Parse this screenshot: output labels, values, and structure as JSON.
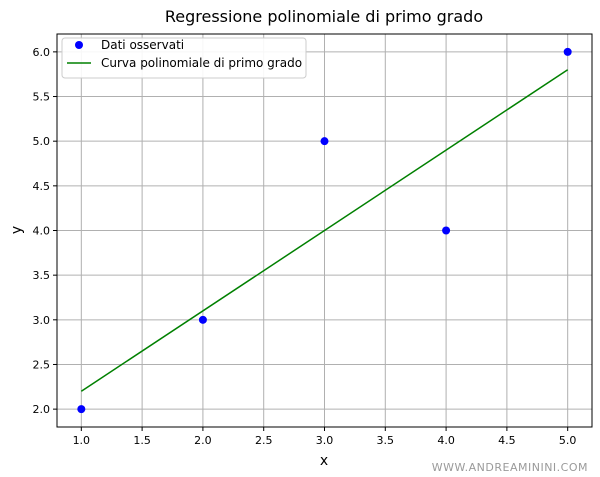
{
  "chart_data": {
    "type": "scatter",
    "title": "Regressione polinomiale di primo grado",
    "xlabel": "x",
    "ylabel": "y",
    "xlim": [
      0.8,
      5.2
    ],
    "ylim": [
      1.8,
      6.2
    ],
    "xticks": [
      "1.0",
      "1.5",
      "2.0",
      "2.5",
      "3.0",
      "3.5",
      "4.0",
      "4.5",
      "5.0"
    ],
    "yticks": [
      "2.0",
      "2.5",
      "3.0",
      "3.5",
      "4.0",
      "4.5",
      "5.0",
      "5.5",
      "6.0"
    ],
    "grid": true,
    "legend_position": "top-left",
    "series": [
      {
        "name": "Dati osservati",
        "kind": "scatter",
        "color": "#0000ff",
        "x": [
          1,
          2,
          3,
          4,
          5
        ],
        "y": [
          2,
          3,
          5,
          4,
          6
        ]
      },
      {
        "name": "Curva polinomiale di primo grado",
        "kind": "line",
        "color": "#008000",
        "x": [
          1,
          5
        ],
        "y": [
          2.2,
          5.8
        ]
      }
    ]
  },
  "watermark": "WWW.ANDREAMININI.COM"
}
